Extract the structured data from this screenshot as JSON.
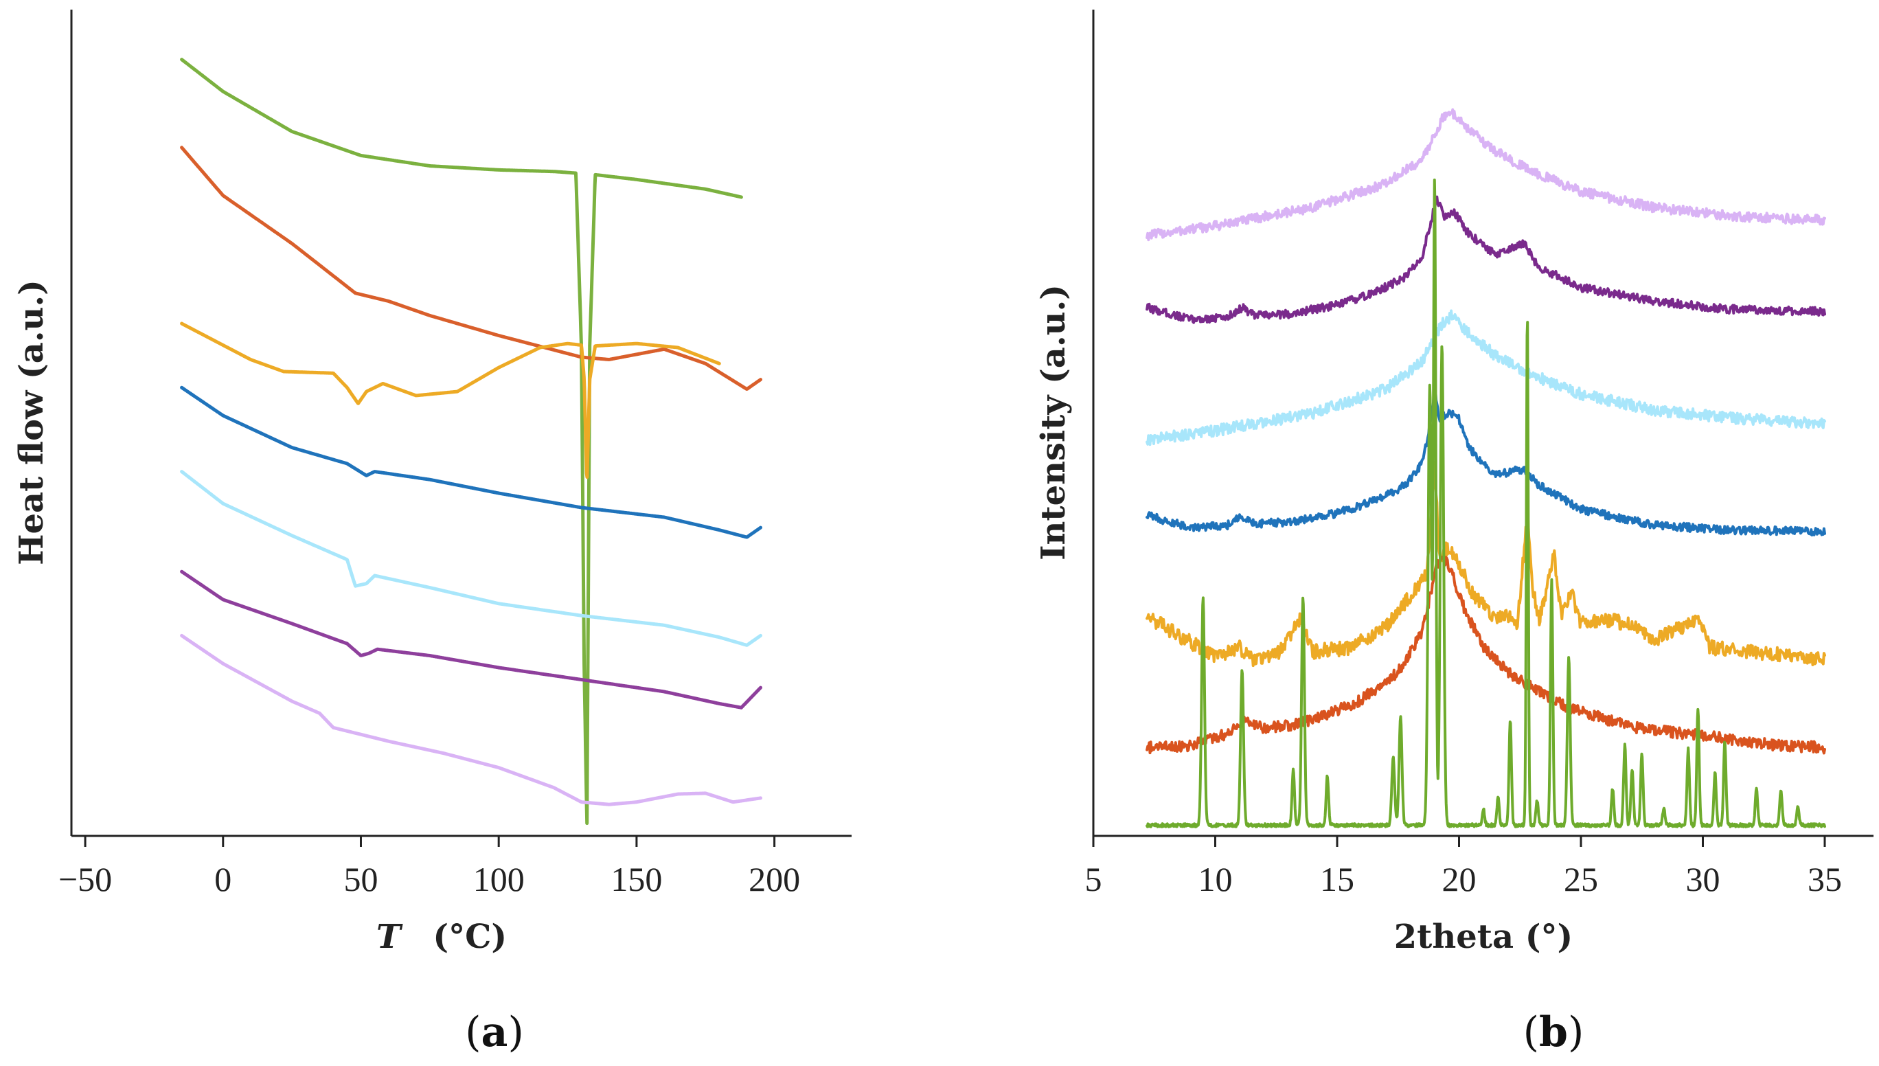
{
  "chart_data": [
    {
      "type": "line",
      "panel_label": "a",
      "xlabel_italic": "T",
      "xlabel_rest": "(°C)",
      "ylabel": "Heat flow (a.u.)",
      "xlim": [
        -55,
        228
      ],
      "ylim": [
        0,
        100
      ],
      "xticks": [
        "−50",
        "0",
        "50",
        "100",
        "150",
        "200"
      ],
      "xtick_values": [
        -50,
        0,
        50,
        100,
        150,
        200
      ],
      "grid": false,
      "legend": "none",
      "series": [
        {
          "color": "#7bb13f",
          "x": [
            -15,
            0,
            25,
            50,
            75,
            100,
            120,
            128,
            130,
            131,
            132,
            133,
            135,
            150,
            175,
            188
          ],
          "y": [
            96,
            92,
            87,
            84,
            82.7,
            82.2,
            82,
            81.8,
            60,
            20,
            0.2,
            60,
            81.6,
            81,
            79.8,
            78.8
          ]
        },
        {
          "color": "#d95f2b",
          "x": [
            -15,
            0,
            25,
            38,
            48,
            60,
            75,
            100,
            130,
            140,
            160,
            175,
            190,
            195
          ],
          "y": [
            85,
            79,
            73,
            69.5,
            66.8,
            65.8,
            64,
            61.5,
            58.8,
            58.5,
            59.8,
            58,
            54.8,
            56
          ]
        },
        {
          "color": "#edaa25",
          "x": [
            -15,
            10,
            22,
            40,
            45,
            49,
            52,
            58,
            70,
            85,
            100,
            115,
            125,
            130,
            131,
            132,
            133,
            135,
            150,
            165,
            180
          ],
          "y": [
            63,
            58.5,
            57,
            56.8,
            55,
            53,
            54.5,
            55.5,
            54,
            54.5,
            57.5,
            60,
            60.5,
            60.3,
            56,
            43,
            56,
            60.2,
            60.5,
            60,
            58
          ]
        },
        {
          "color": "#1f73bb",
          "x": [
            -15,
            0,
            25,
            45,
            52,
            55,
            75,
            100,
            130,
            160,
            180,
            190,
            195
          ],
          "y": [
            55,
            51.5,
            47.5,
            45.5,
            44,
            44.5,
            43.5,
            41.8,
            40,
            38.8,
            37.2,
            36.3,
            37.5
          ]
        },
        {
          "color": "#a8e6fb",
          "x": [
            -15,
            0,
            25,
            45,
            48,
            52,
            55,
            75,
            100,
            130,
            160,
            180,
            190,
            195
          ],
          "y": [
            44.5,
            40.5,
            36.5,
            33.5,
            30.2,
            30.5,
            31.5,
            30,
            28,
            26.5,
            25.3,
            23.8,
            22.8,
            24
          ]
        },
        {
          "color": "#8e3f9c",
          "x": [
            -15,
            0,
            25,
            45,
            50,
            53,
            56,
            75,
            100,
            130,
            160,
            180,
            188,
            195
          ],
          "y": [
            32,
            28.5,
            25.5,
            23,
            21.5,
            21.8,
            22.3,
            21.5,
            20,
            18.5,
            17,
            15.5,
            15,
            17.5
          ]
        },
        {
          "color": "#d9b3f5",
          "x": [
            -15,
            0,
            25,
            35,
            40,
            60,
            80,
            100,
            120,
            130,
            140,
            150,
            165,
            175,
            185,
            195
          ],
          "y": [
            24,
            20.5,
            15.8,
            14.3,
            12.5,
            10.8,
            9.3,
            7.5,
            5,
            3.2,
            2.9,
            3.2,
            4.2,
            4.3,
            3.2,
            3.7
          ]
        }
      ]
    },
    {
      "type": "line",
      "panel_label": "b",
      "xlabel": "2theta (°)",
      "ylabel": "Intensity (a.u.)",
      "xlim": [
        5,
        37
      ],
      "ylim": [
        0,
        100
      ],
      "xticks": [
        "5",
        "10",
        "15",
        "20",
        "25",
        "30",
        "35"
      ],
      "xtick_values": [
        5,
        10,
        15,
        20,
        25,
        30,
        35
      ],
      "grid": false,
      "legend": "none",
      "series": [
        {
          "color": "#d9b3f5",
          "noise": 0.6,
          "x": [
            7.2,
            10,
            14,
            17,
            18.5,
            19.3,
            19.7,
            20.3,
            21.5,
            23,
            25,
            28,
            31,
            34,
            35
          ],
          "y": [
            74,
            75.2,
            77.5,
            80.5,
            83.5,
            88.5,
            89.5,
            87.5,
            84.5,
            82,
            79.5,
            77.5,
            76.5,
            76,
            76
          ]
        },
        {
          "color": "#7a2a8c",
          "noise": 0.5,
          "x": [
            7.2,
            9,
            10.5,
            11.1,
            11.6,
            13,
            15,
            16.5,
            17.8,
            18.5,
            18.9,
            19.1,
            19.4,
            19.8,
            20.3,
            21.5,
            22.3,
            22.7,
            23.2,
            25,
            28,
            31,
            35
          ],
          "y": [
            65,
            63.5,
            63.8,
            65,
            64,
            64.2,
            65.3,
            66.8,
            68.8,
            71.5,
            76.5,
            78.5,
            76.5,
            77,
            74.5,
            71.5,
            72.5,
            73,
            70.2,
            67.5,
            65.8,
            64.8,
            64.5
          ]
        },
        {
          "color": "#a8e6fb",
          "noise": 0.7,
          "x": [
            7.2,
            10,
            14,
            17,
            18.5,
            19.3,
            19.7,
            20.3,
            21.5,
            23,
            25,
            28,
            31,
            34,
            35
          ],
          "y": [
            48.5,
            49.6,
            51.8,
            54.8,
            58.3,
            63,
            64,
            62,
            59,
            56.6,
            54.2,
            52.2,
            51.2,
            50.7,
            50.5
          ]
        },
        {
          "color": "#1f73bb",
          "noise": 0.5,
          "x": [
            7.2,
            9,
            10.5,
            11,
            11.6,
            13,
            15,
            16.5,
            17.8,
            18.5,
            18.9,
            19.0,
            19.2,
            19.6,
            20.0,
            20.4,
            21.5,
            22.3,
            22.7,
            23.2,
            25,
            28,
            31,
            35
          ],
          "y": [
            39,
            37.5,
            37.8,
            39,
            38,
            38.2,
            39.3,
            40.8,
            42.8,
            45.5,
            52,
            55,
            51,
            52,
            51,
            47.5,
            44,
            44.6,
            44.8,
            43,
            39.8,
            37.8,
            37.2,
            37
          ]
        },
        {
          "color": "#edaa25",
          "noise": 0.9,
          "x": [
            7.2,
            8.5,
            10,
            11,
            11.5,
            12.5,
            13.5,
            13.7,
            14,
            15.5,
            17,
            18,
            18.7,
            19.0,
            19.2,
            19.5,
            20,
            20.5,
            21.5,
            22,
            22.4,
            22.8,
            23.0,
            23.3,
            23.9,
            24.2,
            24.6,
            25,
            26,
            27,
            28,
            29.5,
            29.8,
            30.3,
            32,
            33.5,
            35
          ],
          "y": [
            26.5,
            24,
            21.5,
            22.5,
            21,
            21.5,
            26,
            24.5,
            22,
            22.5,
            25,
            29,
            32,
            45.5,
            33,
            35,
            33,
            29.5,
            26,
            26.5,
            25.5,
            39.5,
            30,
            26,
            34,
            26.5,
            29.5,
            25.5,
            26,
            25.5,
            23.5,
            25.5,
            26,
            22.5,
            22,
            21.5,
            21
          ]
        },
        {
          "color": "#d9531e",
          "noise": 0.7,
          "x": [
            7.2,
            9,
            10.5,
            11.3,
            12,
            13,
            14.5,
            16,
            17.5,
            18.5,
            19.1,
            19.5,
            20.2,
            21,
            22,
            23,
            24.5,
            27,
            30,
            33,
            35
          ],
          "y": [
            10,
            10.3,
            11.8,
            13.5,
            12.5,
            12.7,
            14,
            16,
            19.5,
            24.5,
            33,
            33.5,
            27.5,
            22.5,
            19.5,
            17.5,
            15,
            12.6,
            11.5,
            10.3,
            10
          ]
        },
        {
          "color": "#6eab2c",
          "noise": 0.2,
          "peaks": [
            [
              9.5,
              28.5,
              0.06
            ],
            [
              11.1,
              19.5,
              0.06
            ],
            [
              13.2,
              7,
              0.05
            ],
            [
              13.6,
              28.5,
              0.06
            ],
            [
              14.6,
              6.2,
              0.05
            ],
            [
              17.3,
              8.5,
              0.06
            ],
            [
              17.6,
              13.5,
              0.06
            ],
            [
              18.8,
              55,
              0.07
            ],
            [
              19.0,
              80,
              0.05
            ],
            [
              19.3,
              60,
              0.07
            ],
            [
              21.0,
              2,
              0.05
            ],
            [
              21.6,
              3.5,
              0.05
            ],
            [
              22.1,
              13.2,
              0.05
            ],
            [
              22.8,
              64,
              0.04
            ],
            [
              23.2,
              3,
              0.05
            ],
            [
              23.8,
              30.5,
              0.05
            ],
            [
              24.5,
              21,
              0.06
            ],
            [
              26.3,
              4.5,
              0.05
            ],
            [
              26.8,
              10,
              0.05
            ],
            [
              27.1,
              7,
              0.05
            ],
            [
              27.5,
              9,
              0.05
            ],
            [
              28.4,
              2,
              0.05
            ],
            [
              29.4,
              9.5,
              0.05
            ],
            [
              29.8,
              14.5,
              0.05
            ],
            [
              30.5,
              6.5,
              0.05
            ],
            [
              30.9,
              10.5,
              0.05
            ],
            [
              32.2,
              4.5,
              0.05
            ],
            [
              33.2,
              4.5,
              0.05
            ],
            [
              33.9,
              2.2,
              0.05
            ]
          ]
        }
      ]
    }
  ]
}
